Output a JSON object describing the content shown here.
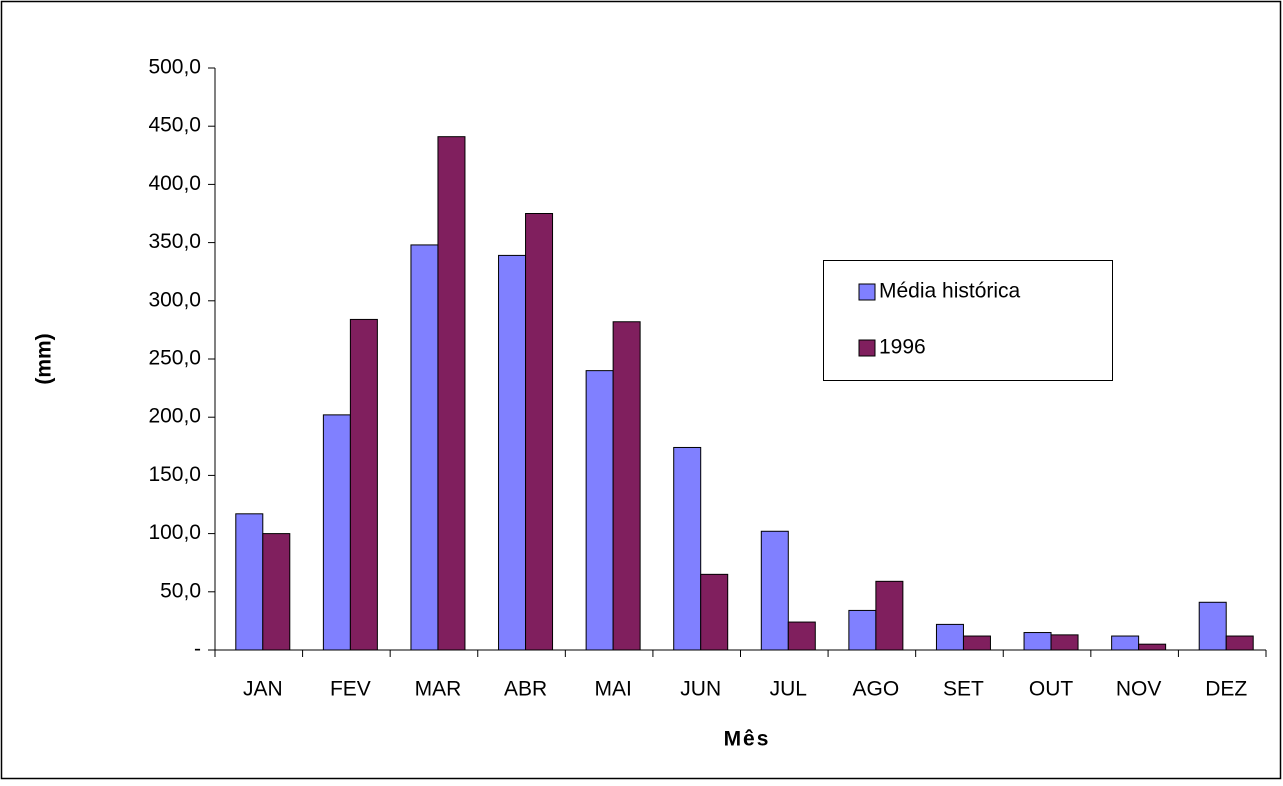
{
  "chart_data": {
    "type": "bar",
    "x_label": "Mês",
    "y_label": "(mm)",
    "categories": [
      "JAN",
      "FEV",
      "MAR",
      "ABR",
      "MAI",
      "JUN",
      "JUL",
      "AGO",
      "SET",
      "OUT",
      "NOV",
      "DEZ"
    ],
    "series": [
      {
        "name": "Média histórica",
        "color": "#8080ff",
        "values": [
          117,
          202,
          348,
          339,
          240,
          174,
          102,
          34,
          22,
          15,
          12,
          41
        ]
      },
      {
        "name": "1996",
        "color": "#801f5e",
        "values": [
          100,
          284,
          441,
          375,
          282,
          65,
          24,
          59,
          12,
          13,
          5,
          12
        ]
      }
    ],
    "ylim": [
      0,
      500
    ],
    "yticks": [
      {
        "value": 0,
        "label": "-"
      },
      {
        "value": 50,
        "label": "50,0"
      },
      {
        "value": 100,
        "label": "100,0"
      },
      {
        "value": 150,
        "label": "150,0"
      },
      {
        "value": 200,
        "label": "200,0"
      },
      {
        "value": 250,
        "label": "250,0"
      },
      {
        "value": 300,
        "label": "300,0"
      },
      {
        "value": 350,
        "label": "350,0"
      },
      {
        "value": 400,
        "label": "400,0"
      },
      {
        "value": 450,
        "label": "450,0"
      },
      {
        "value": 500,
        "label": "500,0"
      }
    ]
  }
}
